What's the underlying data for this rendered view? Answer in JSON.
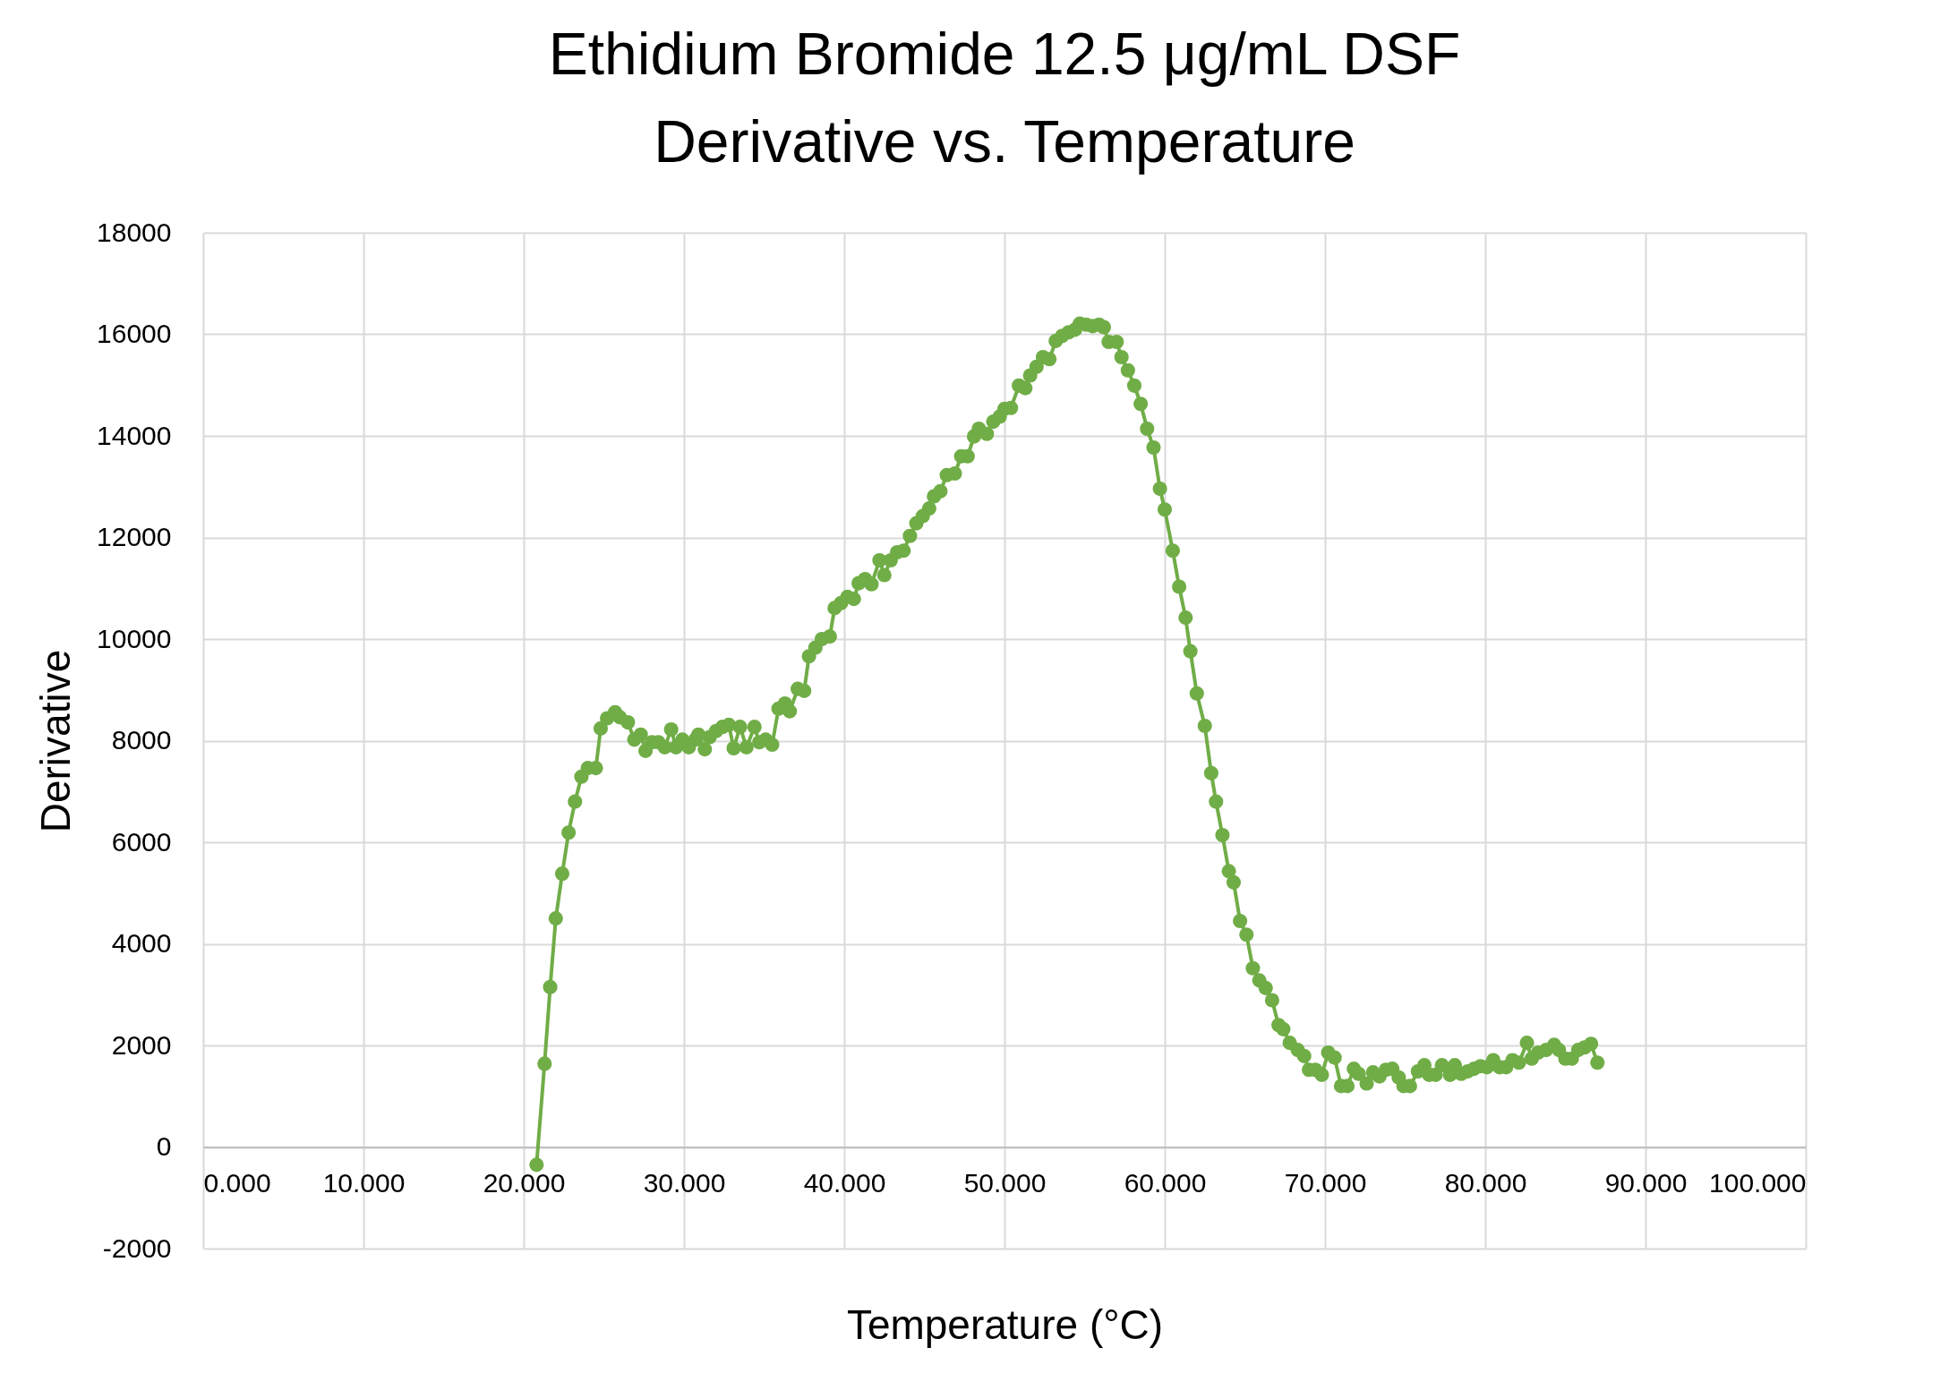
{
  "chart_data": {
    "type": "line",
    "title": "Ethidium Bromide 12.5 μg/mL DSF\nDerivative vs. Temperature",
    "xlabel": "Temperature (°C)",
    "ylabel": "Derivative",
    "xlim": [
      0,
      100
    ],
    "xticks": [
      {
        "value": 0,
        "label": "0.000"
      },
      {
        "value": 10,
        "label": "10.000"
      },
      {
        "value": 20,
        "label": "20.000"
      },
      {
        "value": 30,
        "label": "30.000"
      },
      {
        "value": 40,
        "label": "40.000"
      },
      {
        "value": 50,
        "label": "50.000"
      },
      {
        "value": 60,
        "label": "60.000"
      },
      {
        "value": 70,
        "label": "70.000"
      },
      {
        "value": 80,
        "label": "80.000"
      },
      {
        "value": 90,
        "label": "90.000"
      },
      {
        "value": 100,
        "label": "100.000"
      }
    ],
    "ylim": [
      -2000,
      18000
    ],
    "yticks": [
      -2000,
      0,
      2000,
      4000,
      6000,
      8000,
      10000,
      12000,
      14000,
      16000,
      18000
    ],
    "grid": true,
    "marker": "circle",
    "line_style": "solid",
    "series": [
      {
        "color": "#70ad47",
        "x": [
          20.8,
          21.3,
          21.65,
          22.0,
          22.4,
          22.8,
          23.2,
          23.6,
          24.0,
          24.5,
          24.8,
          25.2,
          25.7,
          26.0,
          26.5,
          26.9,
          27.3,
          27.6,
          28.0,
          28.4,
          28.8,
          29.2,
          29.5,
          29.9,
          30.3,
          30.7,
          30.9,
          31.3,
          31.6,
          32.0,
          32.4,
          32.8,
          33.1,
          33.5,
          33.9,
          34.4,
          34.7,
          35.1,
          35.5,
          35.9,
          36.3,
          36.6,
          37.1,
          37.5,
          37.8,
          38.2,
          38.6,
          39.1,
          39.4,
          39.8,
          40.2,
          40.6,
          40.9,
          41.3,
          41.7,
          42.2,
          42.5,
          42.9,
          43.3,
          43.7,
          44.1,
          44.5,
          44.9,
          45.3,
          45.6,
          46.0,
          46.4,
          46.9,
          47.3,
          47.7,
          48.1,
          48.4,
          48.9,
          49.3,
          49.7,
          50.0,
          50.4,
          50.9,
          51.3,
          51.6,
          52.0,
          52.4,
          52.8,
          53.2,
          53.6,
          54.0,
          54.4,
          54.7,
          55.1,
          55.5,
          55.9,
          56.2,
          56.5,
          57.0,
          57.3,
          57.7,
          58.1,
          58.5,
          58.9,
          59.3,
          59.7,
          60.0,
          60.5,
          60.9,
          61.3,
          61.6,
          62.0,
          62.5,
          62.9,
          63.2,
          63.6,
          64.0,
          64.3,
          64.7,
          65.1,
          65.5,
          65.9,
          66.3,
          66.7,
          67.1,
          67.4,
          67.8,
          68.3,
          68.7,
          69.0,
          69.4,
          69.8,
          70.2,
          70.6,
          71.0,
          71.4,
          71.8,
          72.1,
          72.6,
          73.0,
          73.4,
          73.8,
          74.2,
          74.6,
          74.9,
          75.3,
          75.8,
          76.2,
          76.5,
          76.9,
          77.3,
          77.8,
          78.1,
          78.5,
          78.9,
          79.3,
          79.7,
          80.1,
          80.5,
          80.9,
          81.3,
          81.7,
          82.1,
          82.6,
          82.9,
          83.3,
          83.8,
          84.3,
          84.6,
          85.0,
          85.4,
          85.8,
          86.2,
          86.6,
          87.0
        ],
        "values": [
          -350,
          1640,
          3150,
          4500,
          5380,
          6190,
          6800,
          7290,
          7460,
          7460,
          8240,
          8440,
          8560,
          8460,
          8360,
          8020,
          8120,
          7800,
          7970,
          7970,
          7870,
          8220,
          7870,
          8020,
          7870,
          8020,
          8120,
          7830,
          8070,
          8190,
          8270,
          8310,
          7850,
          8270,
          7870,
          8270,
          7970,
          8020,
          7920,
          8630,
          8730,
          8580,
          9020,
          8980,
          9660,
          9830,
          10000,
          10050,
          10610,
          10710,
          10830,
          10790,
          11100,
          11180,
          11080,
          11550,
          11260,
          11550,
          11710,
          11740,
          12030,
          12280,
          12420,
          12570,
          12810,
          12910,
          13230,
          13260,
          13600,
          13600,
          13990,
          14140,
          14040,
          14280,
          14380,
          14530,
          14550,
          14990,
          14940,
          15190,
          15360,
          15550,
          15510,
          15870,
          15970,
          16040,
          16090,
          16210,
          16190,
          16160,
          16190,
          16140,
          15850,
          15850,
          15550,
          15290,
          14990,
          14630,
          14140,
          13770,
          12960,
          12550,
          11740,
          11030,
          10420,
          9760,
          8930,
          8290,
          7360,
          6800,
          6140,
          5430,
          5210,
          4450,
          4180,
          3520,
          3280,
          3130,
          2890,
          2400,
          2320,
          2050,
          1910,
          1790,
          1520,
          1520,
          1420,
          1860,
          1760,
          1200,
          1200,
          1540,
          1440,
          1250,
          1470,
          1390,
          1520,
          1540,
          1370,
          1200,
          1200,
          1490,
          1610,
          1420,
          1420,
          1610,
          1420,
          1610,
          1440,
          1490,
          1540,
          1590,
          1570,
          1710,
          1570,
          1570,
          1710,
          1660,
          2050,
          1740,
          1860,
          1910,
          2010,
          1910,
          1740,
          1740,
          1910,
          1960,
          2030,
          1660
        ]
      }
    ]
  }
}
